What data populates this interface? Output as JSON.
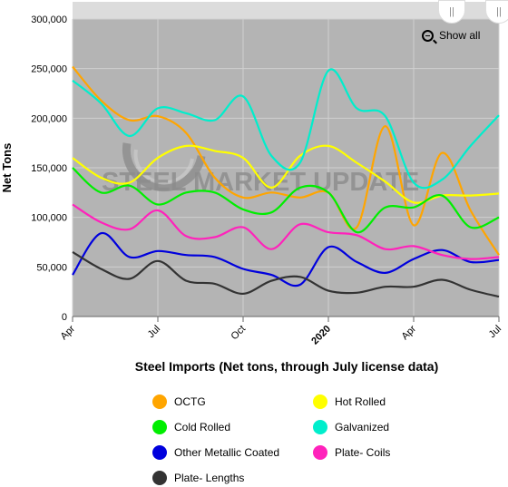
{
  "chart_data": {
    "type": "line",
    "ylabel": "Net Tons",
    "xlabel": "Steel Imports (Net tons, through July license data)",
    "ylim": [
      0,
      300000
    ],
    "yticks": [
      "0",
      "50,000",
      "100,000",
      "150,000",
      "200,000",
      "250,000",
      "300,000"
    ],
    "xticks": [
      "Apr",
      "Jul",
      "Oct",
      "2020",
      "Apr",
      "Jul"
    ],
    "x": [
      "Apr 2019",
      "May 2019",
      "Jun 2019",
      "Jul 2019",
      "Aug 2019",
      "Sep 2019",
      "Oct 2019",
      "Nov 2019",
      "Dec 2019",
      "Jan 2020",
      "Feb 2020",
      "Mar 2020",
      "Apr 2020",
      "May 2020",
      "Jun 2020",
      "Jul 2020"
    ],
    "watermark": "STEEL MARKET UPDATE",
    "series": [
      {
        "name": "OCTG",
        "color": "#ffa500",
        "values": [
          252000,
          218000,
          198000,
          202000,
          185000,
          140000,
          120000,
          125000,
          120000,
          125000,
          90000,
          192000,
          92000,
          165000,
          107000,
          62000
        ]
      },
      {
        "name": "Hot Rolled",
        "color": "#ffff00",
        "values": [
          160000,
          140000,
          135000,
          160000,
          172000,
          167000,
          160000,
          130000,
          162000,
          172000,
          155000,
          136000,
          115000,
          122000,
          122000,
          124000
        ]
      },
      {
        "name": "Cold Rolled",
        "color": "#00ee00",
        "values": [
          150000,
          125000,
          132000,
          113000,
          125000,
          125000,
          108000,
          105000,
          130000,
          125000,
          85000,
          110000,
          110000,
          122000,
          90000,
          100000
        ]
      },
      {
        "name": "Galvanized",
        "color": "#00eecc",
        "values": [
          238000,
          215000,
          182000,
          210000,
          205000,
          198000,
          222000,
          162000,
          155000,
          248000,
          210000,
          202000,
          135000,
          138000,
          172000,
          203000
        ]
      },
      {
        "name": "Other Metallic Coated",
        "color": "#0000dd",
        "values": [
          42000,
          84000,
          60000,
          66000,
          62000,
          60000,
          48000,
          42000,
          32000,
          70000,
          55000,
          44000,
          58000,
          67000,
          55000,
          57000
        ]
      },
      {
        "name": "Plate- Coils",
        "color": "#ff22bb",
        "values": [
          113000,
          95000,
          88000,
          107000,
          81000,
          80000,
          90000,
          68000,
          93000,
          85000,
          82000,
          68000,
          71000,
          62000,
          58000,
          60000
        ]
      },
      {
        "name": "Plate- Lengths",
        "color": "#333333",
        "values": [
          65000,
          48000,
          38000,
          56000,
          36000,
          33000,
          23000,
          36000,
          40000,
          26000,
          24000,
          30000,
          30000,
          37000,
          27000,
          20000
        ]
      }
    ],
    "grid": true,
    "legend_position": "bottom",
    "show_all_label": "Show all"
  }
}
